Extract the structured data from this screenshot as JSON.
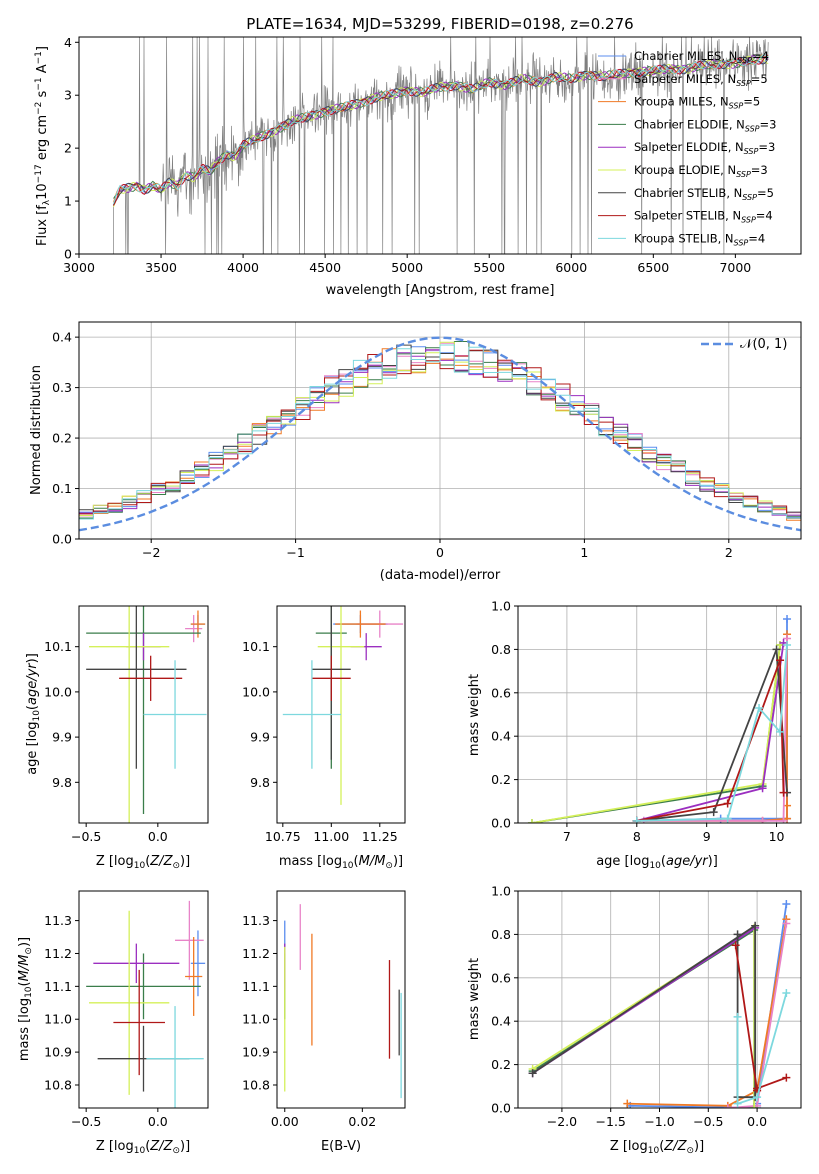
{
  "chart_data": [
    {
      "id": "spectrum",
      "type": "line",
      "title": "PLATE=1634, MJD=53299, FIBERID=0198, z=0.276",
      "xlabel": "wavelength [Angstrom, rest frame]",
      "ylabel": "Flux [f_λ 10^-17 erg cm^-2 s^-1 A^-1]",
      "xlim": [
        3000,
        7400
      ],
      "ylim": [
        0,
        4.1
      ],
      "xticks": [
        3000,
        3500,
        4000,
        4500,
        5000,
        5500,
        6000,
        6500,
        7000
      ],
      "yticks": [
        0,
        1,
        2,
        3,
        4
      ],
      "grid": false,
      "legend_position": "top-right",
      "legend": [
        {
          "name": "Chabrier MILES, N_SSP=4",
          "color": "#5b8def"
        },
        {
          "name": "Salpeter MILES, N_SSP=5",
          "color": "#e884c8"
        },
        {
          "name": "Kroupa MILES, N_SSP=5",
          "color": "#f07a25"
        },
        {
          "name": "Chabrier ELODIE, N_SSP=3",
          "color": "#3a7d4a"
        },
        {
          "name": "Salpeter ELODIE, N_SSP=3",
          "color": "#9b2fc0"
        },
        {
          "name": "Kroupa ELODIE, N_SSP=3",
          "color": "#d4f05a"
        },
        {
          "name": "Chabrier STELIB, N_SSP=5",
          "color": "#444444"
        },
        {
          "name": "Salpeter STELIB, N_SSP=4",
          "color": "#b01818"
        },
        {
          "name": "Kroupa STELIB, N_SSP=4",
          "color": "#7dd8de"
        }
      ],
      "data_color": "#808080",
      "model_x": [
        3210,
        3250,
        3300,
        3350,
        3400,
        3450,
        3500,
        3550,
        3600,
        3650,
        3700,
        3750,
        3800,
        3850,
        3900,
        3950,
        4000,
        4100,
        4200,
        4300,
        4400,
        4500,
        4600,
        4700,
        4800,
        4900,
        5000,
        5100,
        5200,
        5300,
        5400,
        5500,
        5600,
        5700,
        5800,
        5900,
        6000,
        6100,
        6200,
        6300,
        6400,
        6500,
        6600,
        6700,
        6800,
        6900,
        7000,
        7100,
        7200
      ],
      "model_y": [
        0.95,
        1.2,
        1.25,
        1.3,
        1.22,
        1.28,
        1.2,
        1.35,
        1.3,
        1.5,
        1.45,
        1.6,
        1.55,
        1.75,
        1.9,
        1.85,
        2.05,
        2.2,
        2.35,
        2.5,
        2.6,
        2.7,
        2.75,
        2.85,
        2.95,
        3.0,
        3.1,
        3.05,
        3.15,
        3.2,
        3.1,
        3.25,
        3.2,
        3.3,
        3.25,
        3.35,
        3.3,
        3.4,
        3.35,
        3.4,
        3.45,
        3.45,
        3.5,
        3.5,
        3.55,
        3.6,
        3.6,
        3.65,
        3.7
      ]
    },
    {
      "id": "residuals",
      "type": "bar",
      "xlabel": "(data-model)/error",
      "ylabel": "Normed distribution",
      "xlim": [
        -2.5,
        2.5
      ],
      "ylim": [
        0,
        0.43
      ],
      "xticks": [
        -2,
        -1,
        0,
        1,
        2
      ],
      "yticks": [
        0.0,
        0.1,
        0.2,
        0.3,
        0.4
      ],
      "grid": true,
      "legend_position": "top-right",
      "reference_curve": {
        "name": "𝒩(0, 1)",
        "color": "#5b8de0",
        "style": "dashed"
      },
      "bin_width": 0.1
    },
    {
      "id": "age-vs-Z",
      "type": "scatter",
      "xlabel": "Z [log10(Z/Z⊙)]",
      "ylabel": "age  [log10(age/yr)]",
      "xlim": [
        -0.55,
        0.35
      ],
      "ylim": [
        9.71,
        10.19
      ],
      "xticks": [
        -0.5,
        0.0
      ],
      "yticks": [
        9.8,
        9.9,
        10.0,
        10.1
      ],
      "grid": false,
      "points": [
        {
          "color": "#5b8def",
          "x": 0.28,
          "xerr": 0.05,
          "y": 10.15,
          "yerr": 0.02
        },
        {
          "color": "#e884c8",
          "x": 0.25,
          "xerr": 0.06,
          "y": 10.14,
          "yerr": 0.03
        },
        {
          "color": "#f07a25",
          "x": 0.28,
          "xerr": 0.05,
          "y": 10.15,
          "yerr": 0.03
        },
        {
          "color": "#3a7d4a",
          "x": -0.1,
          "xerr": 0.4,
          "y": 10.13,
          "yerr": 0.4
        },
        {
          "color": "#9b2fc0",
          "x": -0.1,
          "xerr": 0.12,
          "y": 10.1,
          "yerr": 0.03
        },
        {
          "color": "#d4f05a",
          "x": -0.2,
          "xerr": 0.28,
          "y": 10.1,
          "yerr": 0.4
        },
        {
          "color": "#444444",
          "x": -0.15,
          "xerr": 0.35,
          "y": 10.05,
          "yerr": 0.22
        },
        {
          "color": "#b01818",
          "x": -0.05,
          "xerr": 0.22,
          "y": 10.03,
          "yerr": 0.05
        },
        {
          "color": "#7dd8de",
          "x": 0.12,
          "xerr": 0.22,
          "y": 9.95,
          "yerr": 0.12
        }
      ]
    },
    {
      "id": "age-vs-mass",
      "type": "scatter",
      "xlabel": "mass [log10(M/M⊙)]",
      "xlim": [
        10.72,
        11.38
      ],
      "ylim": [
        9.71,
        10.19
      ],
      "xticks": [
        10.75,
        11.0,
        11.25
      ],
      "yticks": [
        9.8,
        9.9,
        10.0,
        10.1
      ],
      "grid": false,
      "points": [
        {
          "color": "#5b8def",
          "x": 11.15,
          "xerr": 0.14,
          "y": 10.15,
          "yerr": 0.02
        },
        {
          "color": "#e884c8",
          "x": 11.25,
          "xerr": 0.12,
          "y": 10.15,
          "yerr": 0.03
        },
        {
          "color": "#f07a25",
          "x": 11.15,
          "xerr": 0.13,
          "y": 10.15,
          "yerr": 0.03
        },
        {
          "color": "#3a7d4a",
          "x": 11.0,
          "xerr": 0.08,
          "y": 10.13,
          "yerr": 0.3
        },
        {
          "color": "#9b2fc0",
          "x": 11.18,
          "xerr": 0.08,
          "y": 10.1,
          "yerr": 0.03
        },
        {
          "color": "#d4f05a",
          "x": 11.05,
          "xerr": 0.12,
          "y": 10.1,
          "yerr": 0.35
        },
        {
          "color": "#444444",
          "x": 11.0,
          "xerr": 0.1,
          "y": 10.05,
          "yerr": 0.2
        },
        {
          "color": "#b01818",
          "x": 11.0,
          "xerr": 0.1,
          "y": 10.03,
          "yerr": 0.05
        },
        {
          "color": "#7dd8de",
          "x": 10.9,
          "xerr": 0.15,
          "y": 9.95,
          "yerr": 0.12
        }
      ]
    },
    {
      "id": "weight-vs-age",
      "type": "line",
      "xlabel": "age  [log10(age/yr)]",
      "ylabel": "mass weight",
      "xlim": [
        6.3,
        10.35
      ],
      "ylim": [
        0,
        1.0
      ],
      "xticks": [
        7,
        8,
        9,
        10
      ],
      "yticks": [
        0.0,
        0.2,
        0.4,
        0.6,
        0.8,
        1.0
      ],
      "grid": true,
      "series": [
        {
          "color": "#5b8def",
          "x": [
            8.1,
            9.2,
            10.15,
            10.15
          ],
          "y": [
            0.01,
            0.02,
            0.02,
            0.94
          ]
        },
        {
          "color": "#f07a25",
          "x": [
            8.0,
            9.8,
            10.15,
            10.15,
            10.15
          ],
          "y": [
            0.01,
            0.01,
            0.02,
            0.08,
            0.87
          ]
        },
        {
          "color": "#e884c8",
          "x": [
            8.1,
            9.8,
            10.1,
            10.15
          ],
          "y": [
            0.01,
            0.01,
            0.01,
            0.85
          ]
        },
        {
          "color": "#3a7d4a",
          "x": [
            6.5,
            9.8,
            10.05
          ],
          "y": [
            0.0,
            0.17,
            0.82
          ]
        },
        {
          "color": "#d4f05a",
          "x": [
            6.5,
            9.8,
            10.05
          ],
          "y": [
            0.0,
            0.18,
            0.82
          ]
        },
        {
          "color": "#9b2fc0",
          "x": [
            8.0,
            9.8,
            10.1
          ],
          "y": [
            0.01,
            0.16,
            0.83
          ]
        },
        {
          "color": "#444444",
          "x": [
            8.0,
            9.1,
            10.0,
            10.15
          ],
          "y": [
            0.01,
            0.05,
            0.8,
            0.14
          ]
        },
        {
          "color": "#b01818",
          "x": [
            8.0,
            9.3,
            10.05,
            10.1
          ],
          "y": [
            0.01,
            0.09,
            0.75,
            0.14
          ]
        },
        {
          "color": "#7dd8de",
          "x": [
            8.0,
            9.3,
            9.75,
            10.05,
            10.15
          ],
          "y": [
            0.01,
            0.02,
            0.53,
            0.42,
            0.82
          ]
        }
      ]
    },
    {
      "id": "mass-vs-Z",
      "type": "scatter",
      "xlabel": "Z [log10(Z/Z⊙)]",
      "ylabel": "mass [log10(M/M⊙)]",
      "xlim": [
        -0.55,
        0.35
      ],
      "ylim": [
        10.73,
        11.39
      ],
      "xticks": [
        -0.5,
        0.0
      ],
      "yticks": [
        10.8,
        10.9,
        11.0,
        11.1,
        11.2,
        11.3
      ],
      "grid": false,
      "points": [
        {
          "color": "#5b8def",
          "x": 0.28,
          "xerr": 0.05,
          "y": 11.17,
          "yerr": 0.1
        },
        {
          "color": "#e884c8",
          "x": 0.22,
          "xerr": 0.1,
          "y": 11.24,
          "yerr": 0.12
        },
        {
          "color": "#f07a25",
          "x": 0.25,
          "xerr": 0.06,
          "y": 11.13,
          "yerr": 0.12
        },
        {
          "color": "#3a7d4a",
          "x": -0.1,
          "xerr": 0.4,
          "y": 11.1,
          "yerr": 0.1
        },
        {
          "color": "#9b2fc0",
          "x": -0.15,
          "xerr": 0.3,
          "y": 11.17,
          "yerr": 0.06
        },
        {
          "color": "#d4f05a",
          "x": -0.2,
          "xerr": 0.28,
          "y": 11.05,
          "yerr": 0.28
        },
        {
          "color": "#444444",
          "x": -0.1,
          "xerr": 0.32,
          "y": 10.88,
          "yerr": 0.1
        },
        {
          "color": "#b01818",
          "x": -0.13,
          "xerr": 0.18,
          "y": 10.99,
          "yerr": 0.16
        },
        {
          "color": "#7dd8de",
          "x": 0.12,
          "xerr": 0.2,
          "y": 10.88,
          "yerr": 0.16
        }
      ]
    },
    {
      "id": "mass-vs-ebv",
      "type": "scatter",
      "xlabel": "E(B-V)",
      "xlim": [
        -0.002,
        0.031
      ],
      "ylim": [
        10.73,
        11.39
      ],
      "xticks": [
        0.0,
        0.02
      ],
      "yticks": [
        10.8,
        10.9,
        11.0,
        11.1,
        11.2,
        11.3
      ],
      "grid": false,
      "points": [
        {
          "color": "#5b8def",
          "x": 0.0,
          "y": 11.2,
          "yerr": 0.1
        },
        {
          "color": "#e884c8",
          "x": 0.004,
          "y": 11.25,
          "yerr": 0.1
        },
        {
          "color": "#f07a25",
          "x": 0.007,
          "y": 11.09,
          "yerr": 0.17
        },
        {
          "color": "#3a7d4a",
          "x": 0.0,
          "y": 11.1,
          "yerr": 0.1
        },
        {
          "color": "#9b2fc0",
          "x": 0.0,
          "y": 11.16,
          "yerr": 0.07
        },
        {
          "color": "#d4f05a",
          "x": 0.0,
          "y": 11.0,
          "yerr": 0.22
        },
        {
          "color": "#444444",
          "x": 0.0295,
          "y": 10.99,
          "yerr": 0.1
        },
        {
          "color": "#b01818",
          "x": 0.027,
          "y": 11.03,
          "yerr": 0.15
        },
        {
          "color": "#7dd8de",
          "x": 0.03,
          "y": 10.92,
          "yerr": 0.16
        }
      ]
    },
    {
      "id": "weight-vs-Z",
      "type": "line",
      "xlabel": "Z [log10(Z/Z⊙)]",
      "ylabel": "mass weight",
      "xlim": [
        -2.45,
        0.45
      ],
      "ylim": [
        0,
        1.0
      ],
      "xticks": [
        -2.0,
        -1.5,
        -1.0,
        -0.5,
        0.0
      ],
      "yticks": [
        0.0,
        0.2,
        0.4,
        0.6,
        0.8,
        1.0
      ],
      "grid": true,
      "series": [
        {
          "color": "#5b8def",
          "x": [
            -1.3,
            0.0,
            0.0,
            0.3
          ],
          "y": [
            0.01,
            0.0,
            0.02,
            0.94
          ]
        },
        {
          "color": "#f07a25",
          "x": [
            -1.33,
            -0.3,
            0.0,
            0.3
          ],
          "y": [
            0.02,
            0.01,
            0.08,
            0.87
          ]
        },
        {
          "color": "#e884c8",
          "x": [
            -0.3,
            0.0,
            0.3
          ],
          "y": [
            0.0,
            0.01,
            0.85
          ]
        },
        {
          "color": "#3a7d4a",
          "x": [
            -2.3,
            -0.03,
            -0.03
          ],
          "y": [
            0.17,
            0.82,
            0.0
          ]
        },
        {
          "color": "#d4f05a",
          "x": [
            -2.3,
            -0.03,
            -0.03
          ],
          "y": [
            0.18,
            0.83,
            0.0
          ]
        },
        {
          "color": "#9b2fc0",
          "x": [
            -2.3,
            -0.02
          ],
          "y": [
            0.16,
            0.83
          ]
        },
        {
          "color": "#444444",
          "x": [
            -2.3,
            -0.02,
            -0.02,
            -0.2,
            -0.2
          ],
          "y": [
            0.16,
            0.84,
            0.05,
            0.05,
            0.8
          ]
        },
        {
          "color": "#b01818",
          "x": [
            -0.22,
            0.0,
            0.0,
            0.3
          ],
          "y": [
            0.75,
            0.08,
            0.09,
            0.14
          ]
        },
        {
          "color": "#7dd8de",
          "x": [
            -0.2,
            -0.2,
            0.0,
            0.3
          ],
          "y": [
            0.42,
            0.02,
            0.05,
            0.53
          ]
        }
      ]
    }
  ]
}
